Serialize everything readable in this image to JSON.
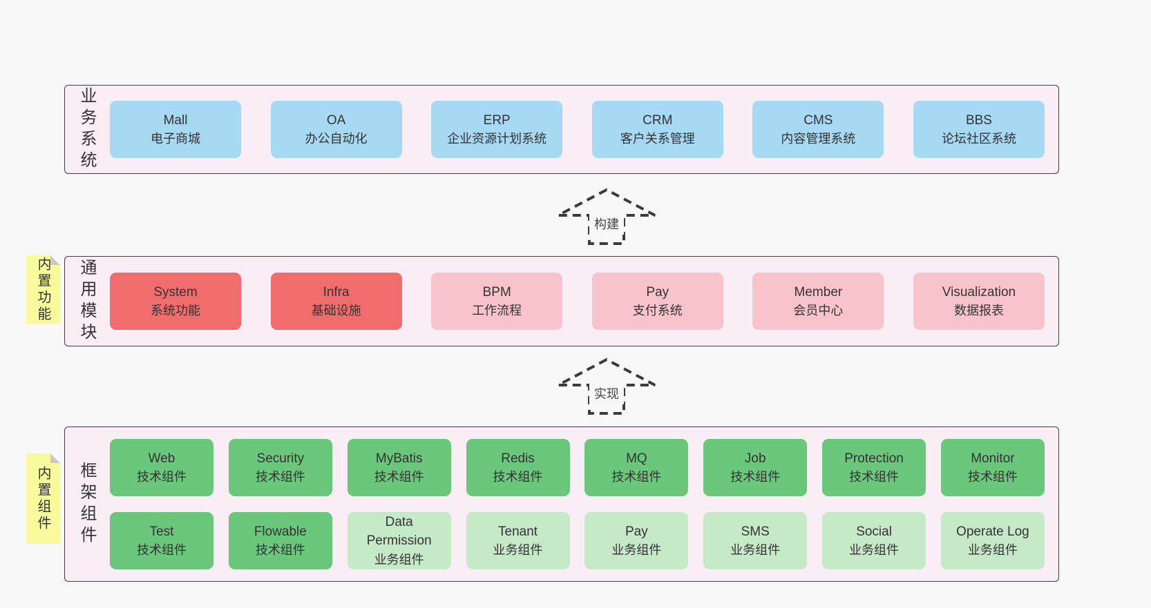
{
  "layers": [
    {
      "label": "业务系统",
      "rows": [
        [
          {
            "en": "Mall",
            "zh": "电子商城",
            "variant": "blue"
          },
          {
            "en": "OA",
            "zh": "办公自动化",
            "variant": "blue"
          },
          {
            "en": "ERP",
            "zh": "企业资源计划系统",
            "variant": "blue"
          },
          {
            "en": "CRM",
            "zh": "客户关系管理",
            "variant": "blue"
          },
          {
            "en": "CMS",
            "zh": "内容管理系统",
            "variant": "blue"
          },
          {
            "en": "BBS",
            "zh": "论坛社区系统",
            "variant": "blue"
          }
        ]
      ]
    },
    {
      "label": "通用模块",
      "note": "内置功能",
      "rows": [
        [
          {
            "en": "System",
            "zh": "系统功能",
            "variant": "red"
          },
          {
            "en": "Infra",
            "zh": "基础设施",
            "variant": "red"
          },
          {
            "en": "BPM",
            "zh": "工作流程",
            "variant": "pink"
          },
          {
            "en": "Pay",
            "zh": "支付系统",
            "variant": "pink"
          },
          {
            "en": "Member",
            "zh": "会员中心",
            "variant": "pink"
          },
          {
            "en": "Visualization",
            "zh": "数据报表",
            "variant": "pink"
          }
        ]
      ]
    },
    {
      "label": "框架组件",
      "note": "内置组件",
      "rows": [
        [
          {
            "en": "Web",
            "zh": "技术组件",
            "variant": "green"
          },
          {
            "en": "Security",
            "zh": "技术组件",
            "variant": "green"
          },
          {
            "en": "MyBatis",
            "zh": "技术组件",
            "variant": "green"
          },
          {
            "en": "Redis",
            "zh": "技术组件",
            "variant": "green"
          },
          {
            "en": "MQ",
            "zh": "技术组件",
            "variant": "green"
          },
          {
            "en": "Job",
            "zh": "技术组件",
            "variant": "green"
          },
          {
            "en": "Protection",
            "zh": "技术组件",
            "variant": "green"
          },
          {
            "en": "Monitor",
            "zh": "技术组件",
            "variant": "green"
          }
        ],
        [
          {
            "en": "Test",
            "zh": "技术组件",
            "variant": "green"
          },
          {
            "en": "Flowable",
            "zh": "技术组件",
            "variant": "green"
          },
          {
            "en": "Data Permission",
            "zh": "业务组件",
            "variant": "lightgreen"
          },
          {
            "en": "Tenant",
            "zh": "业务组件",
            "variant": "lightgreen"
          },
          {
            "en": "Pay",
            "zh": "业务组件",
            "variant": "lightgreen"
          },
          {
            "en": "SMS",
            "zh": "业务组件",
            "variant": "lightgreen"
          },
          {
            "en": "Social",
            "zh": "业务组件",
            "variant": "lightgreen"
          },
          {
            "en": "Operate Log",
            "zh": "业务组件",
            "variant": "lightgreen"
          }
        ]
      ]
    }
  ],
  "arrows": [
    {
      "label": "构建"
    },
    {
      "label": "实现"
    }
  ],
  "colors": {
    "page_bg": "#f8f8f8",
    "container_bg": "#f9edf6",
    "container_border": "#3d3d3d",
    "text": "#333333",
    "blue": "#a7d9f2",
    "red": "#f16c6c",
    "pink": "#f9c3cb",
    "green": "#6bc77c",
    "lightgreen": "#c6e9c8",
    "note_bg": "#f9fa9e",
    "note_fold": "#c9c9c9",
    "arrow": "#3b3b3b"
  }
}
